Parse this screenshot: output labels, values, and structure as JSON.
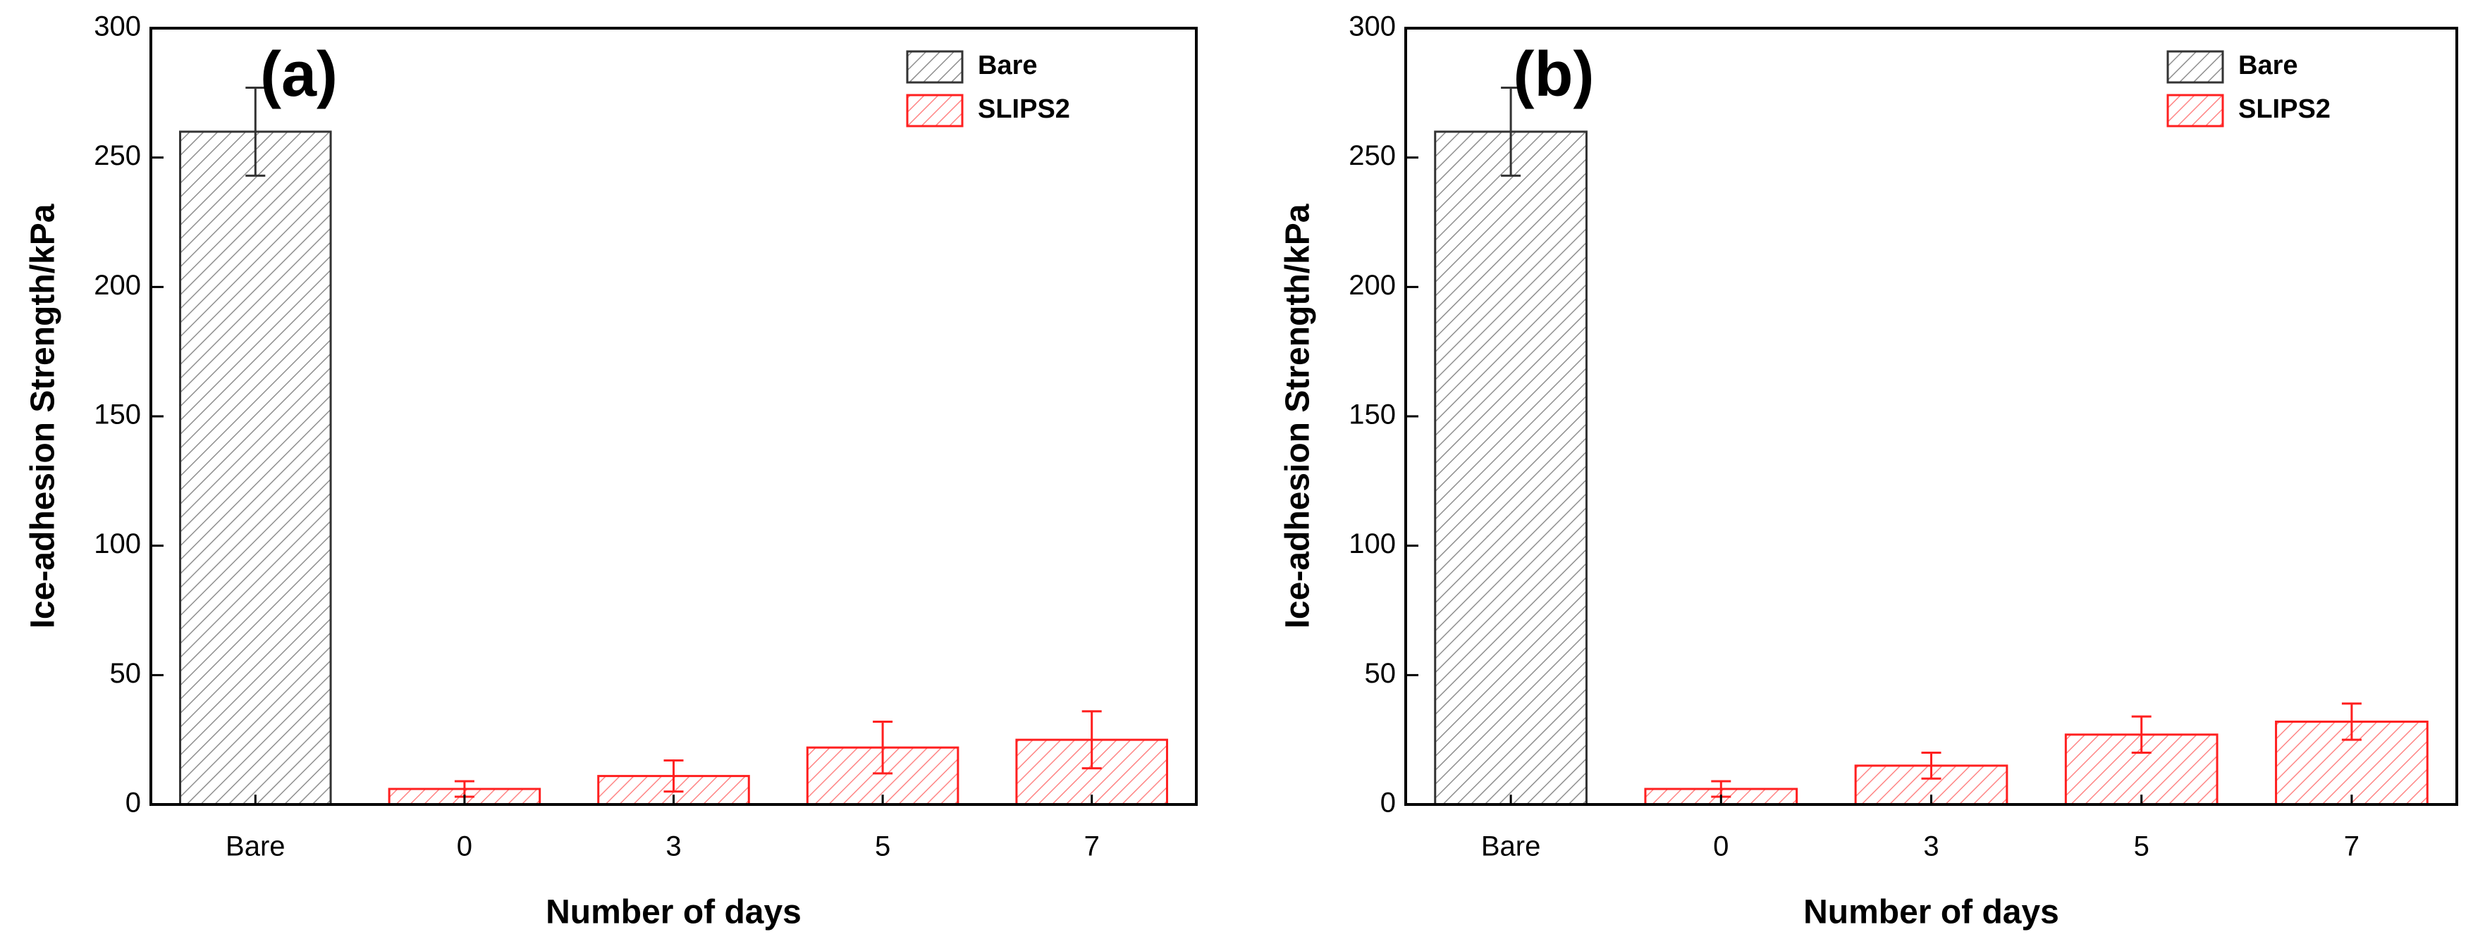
{
  "chart_data": [
    {
      "type": "bar",
      "annotation": "(a)",
      "x_label": "Number of days",
      "y_label": "Ice-adhesion Strength/kPa",
      "categories": [
        "Bare",
        "0",
        "3",
        "5",
        "7"
      ],
      "series": [
        {
          "name": "Bare",
          "color": "#333333",
          "values": [
            260,
            null,
            null,
            null,
            null
          ],
          "errors": [
            17,
            null,
            null,
            null,
            null
          ]
        },
        {
          "name": "SLIPS2",
          "color": "#ff2020",
          "values": [
            null,
            6,
            11,
            22,
            25
          ],
          "errors": [
            null,
            3,
            6,
            10,
            11
          ]
        }
      ],
      "ylim": [
        0,
        300
      ],
      "yticks": [
        0,
        50,
        100,
        150,
        200,
        250,
        300
      ],
      "legend": "upper right"
    },
    {
      "type": "bar",
      "annotation": "(b)",
      "x_label": "Number of days",
      "y_label": "Ice-adhesion Strength/kPa",
      "categories": [
        "Bare",
        "0",
        "3",
        "5",
        "7"
      ],
      "series": [
        {
          "name": "Bare",
          "color": "#333333",
          "values": [
            260,
            null,
            null,
            null,
            null
          ],
          "errors": [
            17,
            null,
            null,
            null,
            null
          ]
        },
        {
          "name": "SLIPS2",
          "color": "#ff2020",
          "values": [
            null,
            6,
            15,
            27,
            32
          ],
          "errors": [
            null,
            3,
            5,
            7,
            7
          ]
        }
      ],
      "ylim": [
        0,
        300
      ],
      "yticks": [
        0,
        50,
        100,
        150,
        200,
        250,
        300
      ],
      "legend": "upper right"
    }
  ]
}
